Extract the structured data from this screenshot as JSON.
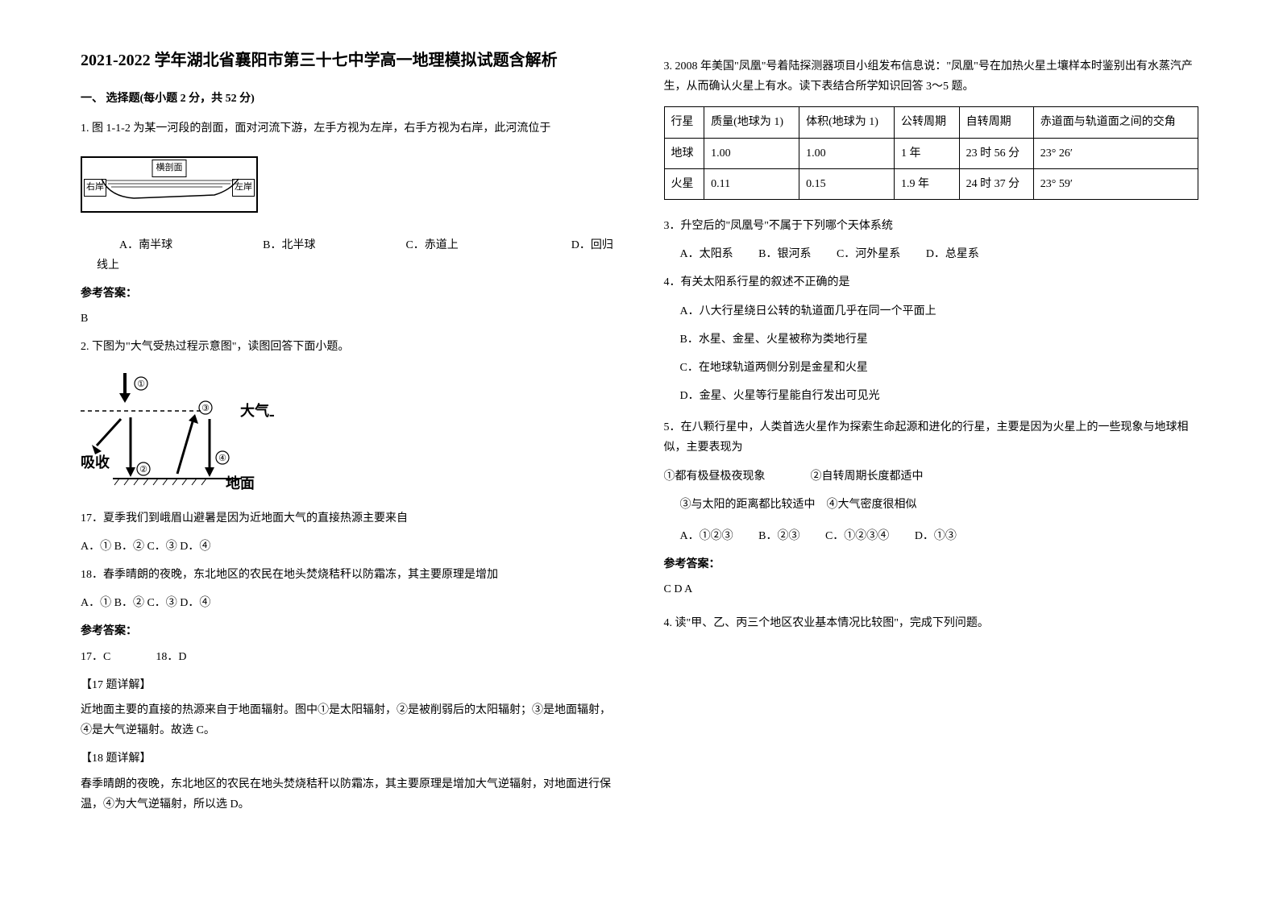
{
  "title": "2021-2022 学年湖北省襄阳市第三十七中学高一地理模拟试题含解析",
  "section1": "一、 选择题(每小题 2 分，共 52 分)",
  "q1": {
    "stem": "1. 图 1-1-2 为某一河段的剖面，面对河流下游，左手方视为左岸，右手方视为右岸，此河流位于",
    "fig": {
      "top": "横剖面",
      "left": "右岸",
      "right": "左岸"
    },
    "opts": "　　A．南半球　　　　　　　　B．北半球　　　　　　　　C．赤道上　　　　　　　　　　D．回归线上",
    "answer_head": "参考答案：",
    "answer": "B"
  },
  "q2": {
    "stem": "2. 下图为\"大气受热过程示意图\"，读图回答下面小题。",
    "fig_labels": {
      "t1": "①",
      "t3": "③",
      "t2": "②",
      "t4": "④",
      "upper": "大气上界",
      "absorb": "吸收",
      "ground": "地面"
    },
    "q17": "17．夏季我们到峨眉山避暑是因为近地面大气的直接热源主要来自",
    "q17_opts": "A．① B．② C．③ D．④",
    "q18": "18．春季晴朗的夜晚，东北地区的农民在地头焚烧秸秆以防霜冻，其主要原理是增加",
    "q18_opts": "A．① B．② C．③ D．④",
    "answer_head": "参考答案：",
    "answer_line": "17．C　　　　18．D",
    "exp17_head": "【17 题详解】",
    "exp17": "近地面主要的直接的热源来自于地面辐射。图中①是太阳辐射，②是被削弱后的太阳辐射；③是地面辐射，④是大气逆辐射。故选 C。",
    "exp18_head": "【18 题详解】",
    "exp18": "春季晴朗的夜晚，东北地区的农民在地头焚烧秸秆以防霜冻，其主要原理是增加大气逆辐射，对地面进行保温，④为大气逆辐射，所以选 D。"
  },
  "q3": {
    "intro": "3. 2008 年美国\"凤凰\"号着陆探测器项目小组发布信息说：\"凤凰\"号在加热火星土壤样本时鉴别出有水蒸汽产生，从而确认火星上有水。读下表结合所学知识回答 3～5 题。",
    "table": {
      "headers": [
        "行星",
        "质量(地球为 1)",
        "体积(地球为 1)",
        "公转周期",
        "自转周期",
        "赤道面与轨道面之间的交角"
      ],
      "rows": [
        [
          "地球",
          "1.00",
          "1.00",
          "1 年",
          "23 时 56 分",
          "23° 26′"
        ],
        [
          "火星",
          "0.11",
          "0.15",
          "1.9 年",
          "24 时 37 分",
          "23° 59′"
        ]
      ]
    },
    "sub3": "3．升空后的\"凤凰号\"不属于下列哪个天体系统",
    "sub3_opts": {
      "a": "A．太阳系",
      "b": "B．银河系",
      "c": "C．河外星系",
      "d": "D．总星系"
    },
    "sub4": "4．有关太阳系行星的叙述不正确的是",
    "sub4_opts": {
      "a": "A．八大行星绕日公转的轨道面几乎在同一个平面上",
      "b": "B．水星、金星、火星被称为类地行星",
      "c": "C．在地球轨道两侧分别是金星和火星",
      "d": "D．金星、火星等行星能自行发出可见光"
    },
    "sub5": "5．在八颗行星中，人类首选火星作为探索生命起源和进化的行星，主要是因为火星上的一些现象与地球相似，主要表现为",
    "sub5_items": "①都有极昼极夜现象　　　　②自转周期长度都适中",
    "sub5_items2": "③与太阳的距离都比较适中　④大气密度很相似",
    "sub5_opts": {
      "a": "A．①②③",
      "b": "B．②③",
      "c": "C．①②③④",
      "d": "D．①③"
    },
    "answer_head": "参考答案：",
    "answer": "C D A"
  },
  "q4": "4. 读\"甲、乙、丙三个地区农业基本情况比较图\"，完成下列问题。",
  "colors": {
    "text": "#000000",
    "bg": "#ffffff",
    "border": "#000000"
  }
}
